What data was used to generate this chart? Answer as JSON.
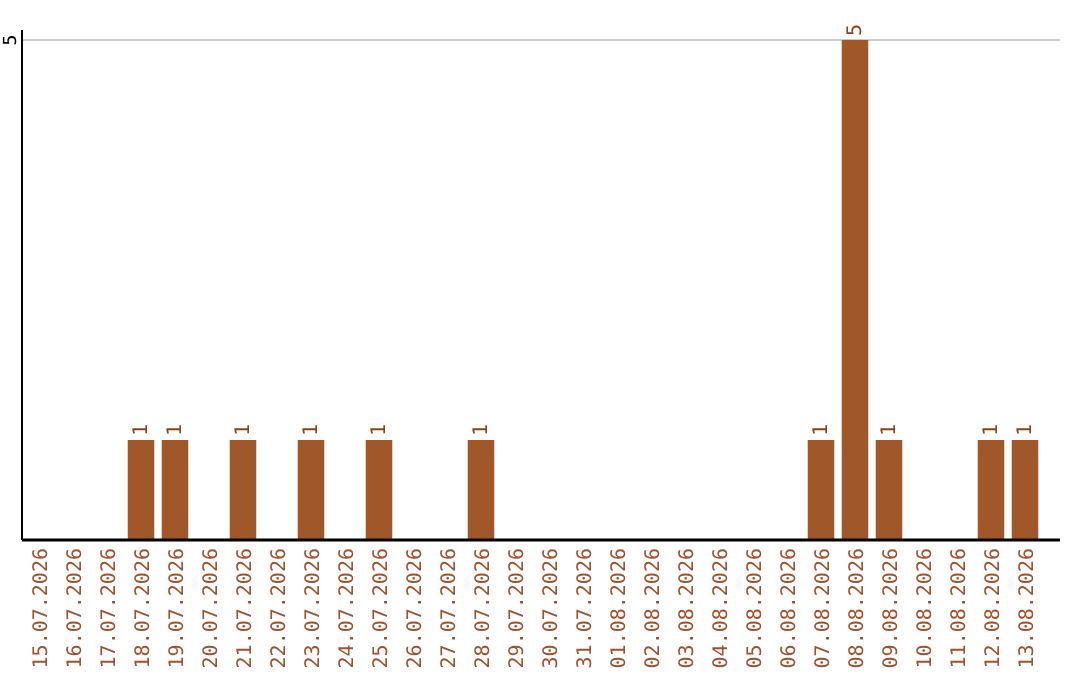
{
  "chart_data": {
    "type": "bar",
    "categories": [
      "15.07.2026",
      "16.07.2026",
      "17.07.2026",
      "18.07.2026",
      "19.07.2026",
      "20.07.2026",
      "21.07.2026",
      "22.07.2026",
      "23.07.2026",
      "24.07.2026",
      "25.07.2026",
      "26.07.2026",
      "27.07.2026",
      "28.07.2026",
      "29.07.2026",
      "30.07.2026",
      "31.07.2026",
      "01.08.2026",
      "02.08.2026",
      "03.08.2026",
      "04.08.2026",
      "05.08.2026",
      "06.08.2026",
      "07.08.2026",
      "08.08.2026",
      "09.08.2026",
      "10.08.2026",
      "11.08.2026",
      "12.08.2026",
      "13.08.2026"
    ],
    "values": [
      0,
      0,
      0,
      1,
      1,
      0,
      1,
      0,
      1,
      0,
      1,
      0,
      0,
      1,
      0,
      0,
      0,
      0,
      0,
      0,
      0,
      0,
      0,
      1,
      5,
      1,
      0,
      0,
      1,
      1
    ],
    "value_labels": [
      null,
      null,
      null,
      "1",
      "1",
      null,
      "1",
      null,
      "1",
      null,
      "1",
      null,
      null,
      "1",
      null,
      null,
      null,
      null,
      null,
      null,
      null,
      null,
      null,
      "1",
      "5",
      "1",
      null,
      null,
      "1",
      "1"
    ],
    "color": "#a0572a",
    "ylim": [
      0,
      5
    ],
    "yticks": [
      5
    ],
    "ref_lines": [
      {
        "axis": "y",
        "value": 5,
        "color": "#cccccc"
      }
    ]
  }
}
